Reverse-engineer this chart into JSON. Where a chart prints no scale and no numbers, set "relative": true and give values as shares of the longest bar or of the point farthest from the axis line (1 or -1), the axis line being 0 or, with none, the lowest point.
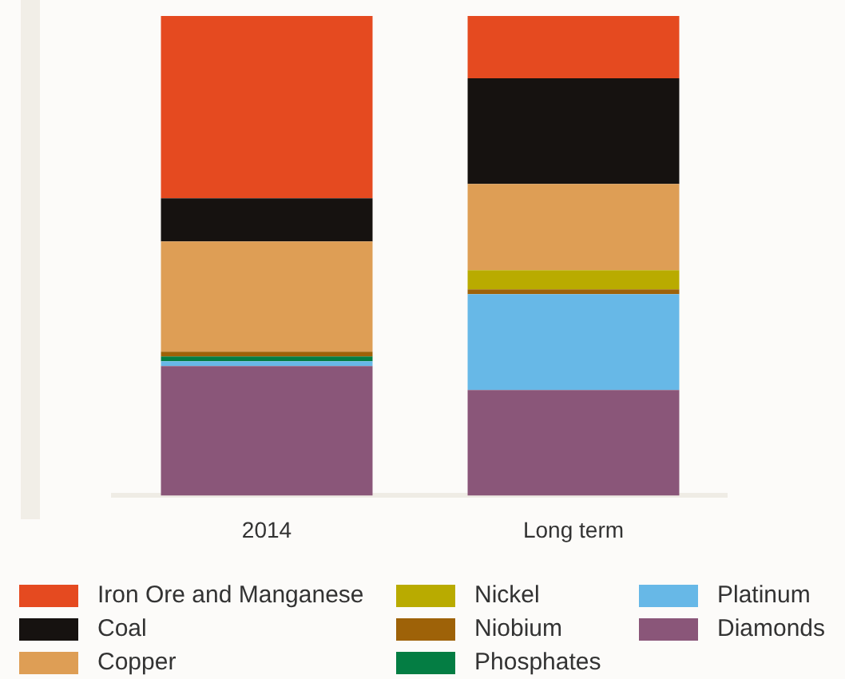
{
  "chart_data": {
    "type": "bar",
    "stacked": true,
    "relative": true,
    "legend": "bottom",
    "categories": [
      "2014",
      "Long term"
    ],
    "series": [
      {
        "name": "Diamonds",
        "color": "#8a5679",
        "values": [
          0.27,
          0.22
        ]
      },
      {
        "name": "Platinum",
        "color": "#67b8e7",
        "values": [
          0.01,
          0.2
        ]
      },
      {
        "name": "Phosphates",
        "color": "#047d43",
        "values": [
          0.01,
          0
        ]
      },
      {
        "name": "Niobium",
        "color": "#9e6208",
        "values": [
          0.01,
          0.01
        ]
      },
      {
        "name": "Nickel",
        "color": "#b9ab00",
        "values": [
          0,
          0.04
        ]
      },
      {
        "name": "Copper",
        "color": "#de9e55",
        "values": [
          0.23,
          0.18
        ]
      },
      {
        "name": "Coal",
        "color": "#161210",
        "values": [
          0.09,
          0.22
        ]
      },
      {
        "name": "Iron Ore and Manganese",
        "color": "#e54a20",
        "values": [
          0.38,
          0.13
        ]
      }
    ]
  }
}
